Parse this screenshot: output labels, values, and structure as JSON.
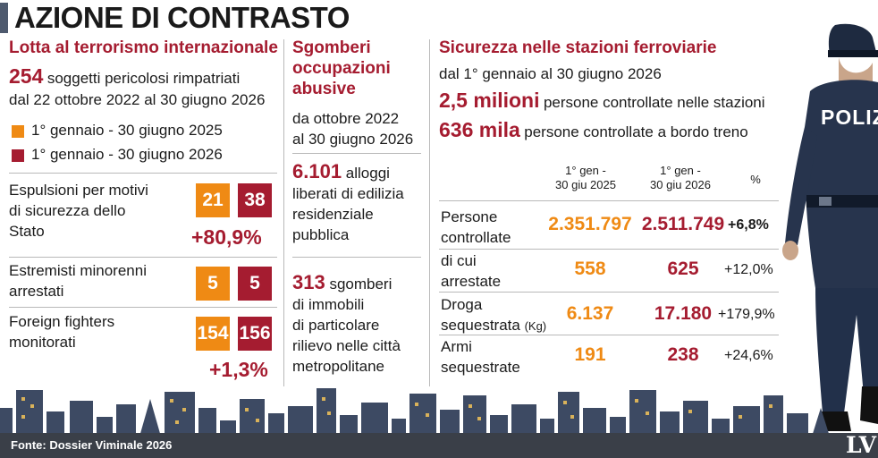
{
  "header": {
    "title": "AZIONE DI CONTRASTO"
  },
  "col1": {
    "title": "Lotta al terrorismo internazionale",
    "lead_number": "254",
    "lead_text_1": "soggetti pericolosi rimpatriati",
    "lead_text_2": "dal 22 ottobre 2022 al 30 giugno 2026",
    "legend": [
      {
        "label": "1° gennaio - 30 giugno 2025",
        "color": "#ef8a14"
      },
      {
        "label": "1° gennaio - 30 giugno 2026",
        "color": "#a51c30"
      }
    ],
    "rows": [
      {
        "label_1": "Espulsioni per motivi",
        "label_2": "di sicurezza dello",
        "label_3": "Stato",
        "v2025": "21",
        "v2026": "38",
        "change": "+80,9%"
      },
      {
        "label_1": "Estremisti minorenni",
        "label_2": "arrestati",
        "v2025": "5",
        "v2026": "5"
      },
      {
        "label_1": "Foreign fighters",
        "label_2": "monitorati",
        "v2025": "154",
        "v2026": "156",
        "change": "+1,3%"
      }
    ]
  },
  "col2": {
    "title_1": "Sgomberi",
    "title_2": "occupazioni",
    "title_3": "abusive",
    "period_1": "da ottobre 2022",
    "period_2": "al 30 giugno 2026",
    "block1": {
      "number": "6.101",
      "text_1": "alloggi",
      "text_2": "liberati di edilizia",
      "text_3": "residenziale",
      "text_4": "pubblica"
    },
    "block2": {
      "number": "313",
      "text_1": "sgomberi",
      "text_2": "di immobili",
      "text_3": "di particolare",
      "text_4": "rilievo nelle città",
      "text_5": "metropolitane"
    }
  },
  "col3": {
    "title": "Sicurezza nelle stazioni ferroviarie",
    "period": "dal 1° gennaio al 30 giugno 2026",
    "stat1": {
      "number": "2,5 milioni",
      "text": "persone controllate nelle stazioni"
    },
    "stat2": {
      "number": "636 mila",
      "text": "persone controllate a bordo treno"
    },
    "table": {
      "head_2025_1": "1° gen -",
      "head_2025_2": "30 giu 2025",
      "head_2026_1": "1° gen -",
      "head_2026_2": "30 giu 2026",
      "head_pct": "%",
      "rows": [
        {
          "label_1": "Persone",
          "label_2": "controllate",
          "v2025": "2.351.797",
          "v2026": "2.511.749",
          "pct": "+6,8%"
        },
        {
          "label_1": "di cui",
          "label_2": "arrestate",
          "v2025": "558",
          "v2026": "625",
          "pct": "+12,0%"
        },
        {
          "label_1": "Droga",
          "label_2": "sequestrata",
          "unit": "(Kg)",
          "v2025": "6.137",
          "v2026": "17.180",
          "pct": "+179,9%"
        },
        {
          "label_1": "Armi",
          "label_2": "sequestrate",
          "v2025": "191",
          "v2026": "238",
          "pct": "+24,6%"
        }
      ]
    }
  },
  "officer": {
    "badge_text": "POLIZ"
  },
  "footer": {
    "source": "Fonte: Dossier Viminale 2026",
    "logo": "LV"
  }
}
